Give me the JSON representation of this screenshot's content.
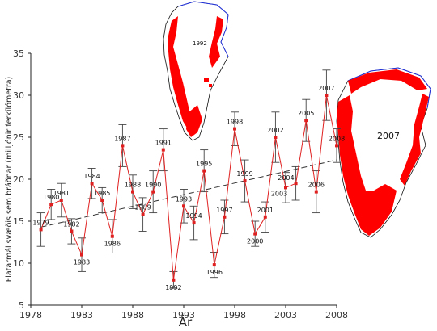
{
  "chart_data": {
    "type": "line",
    "xlabel": "Ár",
    "ylabel": "Flatarmál svæðis sem bráðnar (milljónir ferkílómetra)",
    "xlim": [
      1978,
      2008
    ],
    "ylim": [
      5,
      35
    ],
    "x_ticks": [
      "1978",
      "1983",
      "1988",
      "1993",
      "1998",
      "2003",
      "2008"
    ],
    "y_ticks": [
      "5",
      "10",
      "15",
      "20",
      "25",
      "30",
      "35"
    ],
    "series": [
      {
        "color": "#e02020",
        "points": [
          {
            "x": 1979,
            "y": 14.0,
            "label": "1979",
            "err": 2.0
          },
          {
            "x": 1980,
            "y": 17.0,
            "label": "1980",
            "err": 1.8
          },
          {
            "x": 1981,
            "y": 17.5,
            "label": "1981",
            "err": 2.0
          },
          {
            "x": 1982,
            "y": 13.8,
            "label": "1982",
            "err": 1.5
          },
          {
            "x": 1983,
            "y": 11.0,
            "label": "1983",
            "err": 2.0
          },
          {
            "x": 1984,
            "y": 19.5,
            "label": "1984",
            "err": 1.8
          },
          {
            "x": 1985,
            "y": 17.5,
            "label": "1985",
            "err": 1.5
          },
          {
            "x": 1986,
            "y": 13.2,
            "label": "1986",
            "err": 2.0
          },
          {
            "x": 1987,
            "y": 24.0,
            "label": "1987",
            "err": 2.5
          },
          {
            "x": 1988,
            "y": 18.5,
            "label": "1988",
            "err": 2.0
          },
          {
            "x": 1989,
            "y": 15.8,
            "label": "1989",
            "err": 2.0
          },
          {
            "x": 1990,
            "y": 18.5,
            "label": "1990",
            "err": 2.5
          },
          {
            "x": 1991,
            "y": 23.5,
            "label": "1991",
            "err": 2.5
          },
          {
            "x": 1992,
            "y": 8.0,
            "label": "1992",
            "err": 1.0
          },
          {
            "x": 1993,
            "y": 16.8,
            "label": "1993",
            "err": 2.0
          },
          {
            "x": 1994,
            "y": 14.8,
            "label": "1994",
            "err": 2.0
          },
          {
            "x": 1995,
            "y": 21.0,
            "label": "1995",
            "err": 2.5
          },
          {
            "x": 1996,
            "y": 9.8,
            "label": "1996",
            "err": 1.5
          },
          {
            "x": 1997,
            "y": 15.5,
            "label": "1997",
            "err": 2.0
          },
          {
            "x": 1998,
            "y": 26.0,
            "label": "1998",
            "err": 2.0
          },
          {
            "x": 1999,
            "y": 19.8,
            "label": "1999",
            "err": 2.5
          },
          {
            "x": 2000,
            "y": 13.5,
            "label": "2000",
            "err": 1.5
          },
          {
            "x": 2001,
            "y": 15.5,
            "label": "2001",
            "err": 1.8
          },
          {
            "x": 2002,
            "y": 25.0,
            "label": "2002",
            "err": 3.0
          },
          {
            "x": 2003,
            "y": 19.0,
            "label": "2003",
            "err": 1.8
          },
          {
            "x": 2004,
            "y": 19.5,
            "label": "2004",
            "err": 2.0
          },
          {
            "x": 2005,
            "y": 27.0,
            "label": "2005",
            "err": 2.5
          },
          {
            "x": 2006,
            "y": 18.5,
            "label": "2006",
            "err": 2.5
          },
          {
            "x": 2007,
            "y": 30.0,
            "label": "2007",
            "err": 3.0
          },
          {
            "x": 2008,
            "y": 24.0,
            "label": "2008",
            "err": 2.0
          }
        ]
      }
    ],
    "trendline": {
      "x": [
        1979,
        2008
      ],
      "y": [
        14.3,
        22.3
      ],
      "style": "dashed",
      "color": "#333333"
    }
  },
  "insets": {
    "map_small_label": "1992",
    "map_large_label": "2007",
    "melt_color": "#ff0000",
    "coast_color": "#2233dd"
  }
}
